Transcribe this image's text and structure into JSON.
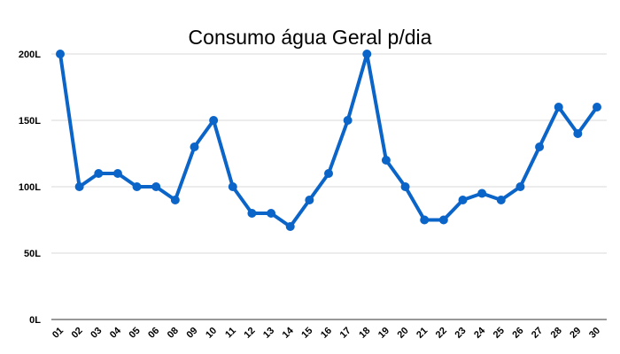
{
  "chart_data": {
    "type": "line",
    "title": "Consumo água Geral p/dia",
    "xlabel": "",
    "ylabel": "",
    "categories": [
      "01",
      "02",
      "03",
      "04",
      "05",
      "06",
      "08",
      "09",
      "10",
      "11",
      "12",
      "13",
      "14",
      "15",
      "16",
      "17",
      "18",
      "19",
      "20",
      "21",
      "22",
      "23",
      "24",
      "25",
      "26",
      "27",
      "28",
      "29",
      "30"
    ],
    "series": [
      {
        "values": [
          200,
          100,
          110,
          110,
          100,
          100,
          90,
          130,
          150,
          100,
          80,
          80,
          70,
          90,
          110,
          150,
          200,
          120,
          100,
          75,
          75,
          90,
          95,
          90,
          100,
          130,
          160,
          140,
          160
        ]
      }
    ],
    "ylim": [
      0,
      200
    ],
    "yticks": [
      0,
      50,
      100,
      150,
      200
    ],
    "ytick_labels": [
      "0L",
      "50L",
      "100L",
      "150L",
      "200L"
    ],
    "grid": true,
    "legend": "none",
    "colors": {
      "line": "#0b64c8",
      "grid": "#d9d9d9",
      "axis": "#333333"
    }
  }
}
